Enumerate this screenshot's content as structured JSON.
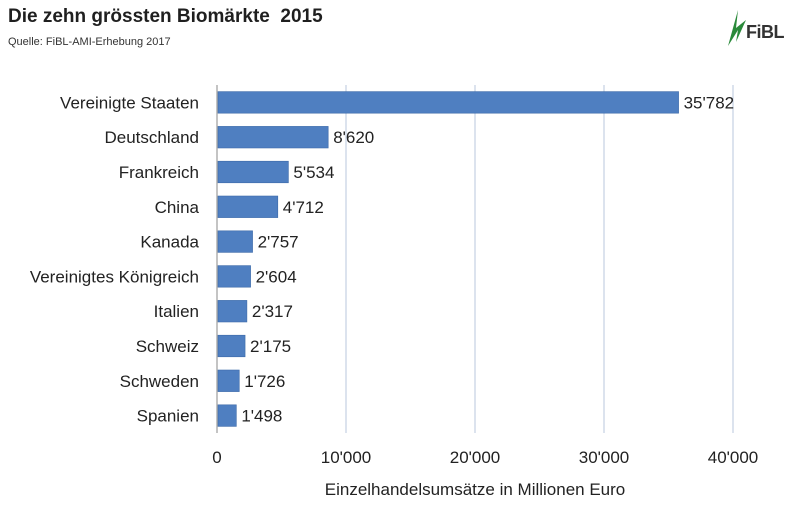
{
  "header": {
    "title": "Die zehn grössten Biomärkte  2015",
    "source": "Quelle: FiBL-AMI-Erhebung 2017",
    "logo_text": "FiBL",
    "logo_color": "#2a8a3a"
  },
  "chart_data": {
    "type": "bar",
    "orientation": "horizontal",
    "title": "Die zehn grössten Biomärkte  2015",
    "subtitle": "Quelle: FiBL-AMI-Erhebung 2017",
    "xlabel": "Einzelhandelsumsätze in Millionen Euro",
    "ylabel": "",
    "xlim": [
      0,
      40000
    ],
    "xticks": [
      0,
      10000,
      20000,
      30000,
      40000
    ],
    "xtick_labels": [
      "0",
      "10'000",
      "20'000",
      "30'000",
      "40'000"
    ],
    "grid": "vertical",
    "bar_color": "#4f7fc1",
    "categories": [
      "Vereinigte Staaten",
      "Deutschland",
      "Frankreich",
      "China",
      "Kanada",
      "Vereinigtes Königreich",
      "Italien",
      "Schweiz",
      "Schweden",
      "Spanien"
    ],
    "values": [
      35782,
      8620,
      5534,
      4712,
      2757,
      2604,
      2317,
      2175,
      1726,
      1498
    ],
    "value_labels": [
      "35'782",
      "8'620",
      "5'534",
      "4'712",
      "2'757",
      "2'604",
      "2'317",
      "2'175",
      "1'726",
      "1'498"
    ]
  }
}
